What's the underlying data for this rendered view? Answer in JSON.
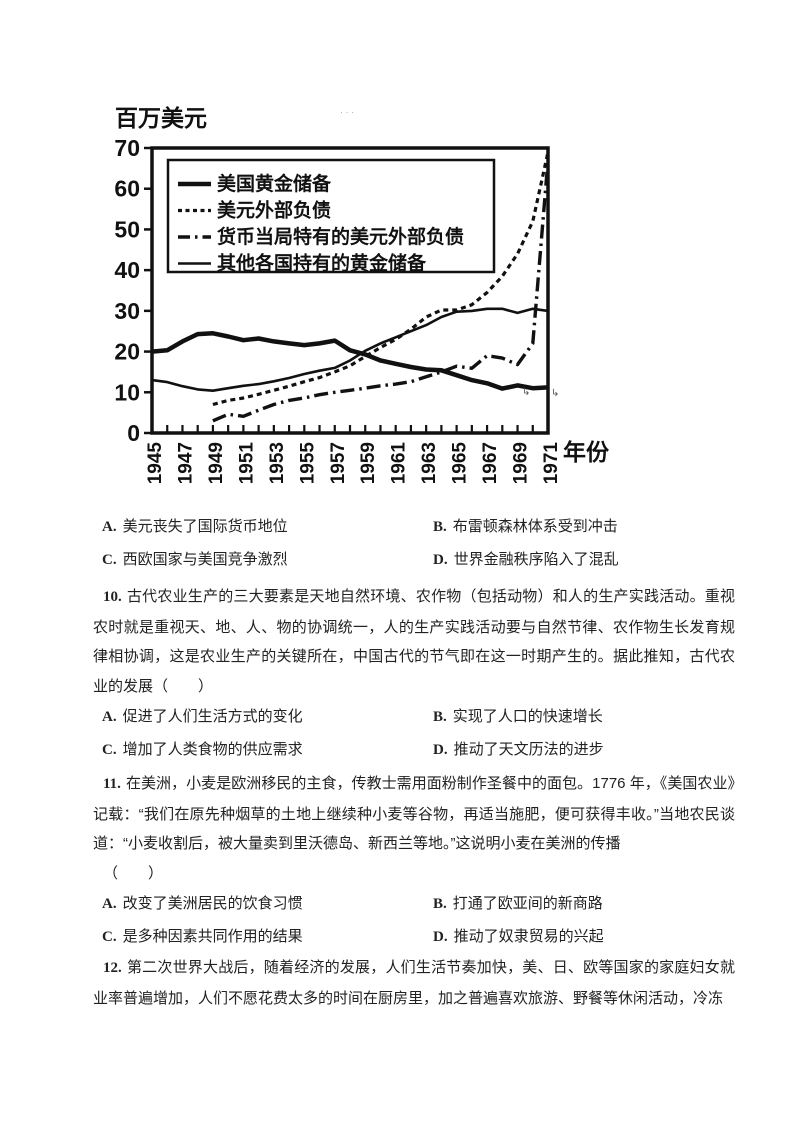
{
  "chart_data": {
    "type": "line",
    "title": "",
    "ylabel": "百万美元",
    "xlabel": "年份",
    "ylim": [
      0,
      70
    ],
    "yticks": [
      70,
      60,
      50,
      40,
      30,
      20,
      10,
      0
    ],
    "x_range": [
      1945,
      1971
    ],
    "xticks": [
      1945,
      1947,
      1949,
      1951,
      1953,
      1955,
      1957,
      1959,
      1961,
      1963,
      1965,
      1967,
      1969,
      1971
    ],
    "grid": false,
    "legend_position": "top-left",
    "series": [
      {
        "name": "美国黄金储备",
        "style": "solid-thick",
        "x": [
          1945,
          1946,
          1947,
          1948,
          1949,
          1950,
          1951,
          1952,
          1953,
          1954,
          1955,
          1956,
          1957,
          1958,
          1959,
          1960,
          1961,
          1962,
          1963,
          1964,
          1965,
          1966,
          1967,
          1968,
          1969,
          1970,
          1971
        ],
        "values": [
          20,
          20.3,
          22.5,
          24.3,
          24.5,
          23.7,
          22.8,
          23.2,
          22.5,
          22,
          21.6,
          22,
          22.7,
          20.3,
          19.3,
          17.8,
          17,
          16.2,
          15.6,
          15.4,
          14.2,
          13,
          12.2,
          10.9,
          11.7,
          11,
          11.2
        ]
      },
      {
        "name": "美元外部负债",
        "style": "dashed",
        "x": [
          1949,
          1950,
          1951,
          1952,
          1953,
          1954,
          1955,
          1956,
          1957,
          1958,
          1959,
          1960,
          1961,
          1962,
          1963,
          1964,
          1965,
          1966,
          1967,
          1968,
          1969,
          1970,
          1971
        ],
        "values": [
          7,
          8,
          8.6,
          9.5,
          10.5,
          11.5,
          12.6,
          13.6,
          15,
          16.5,
          18.8,
          21,
          23,
          25.5,
          28.5,
          30.2,
          30.2,
          31.5,
          34.5,
          38.5,
          44,
          52,
          69
        ]
      },
      {
        "name": "货币当局特有的美元外部负债",
        "style": "dash-dot",
        "x": [
          1949,
          1950,
          1951,
          1952,
          1953,
          1954,
          1955,
          1956,
          1957,
          1958,
          1959,
          1960,
          1961,
          1962,
          1963,
          1964,
          1965,
          1966,
          1967,
          1968,
          1969,
          1970,
          1971
        ],
        "values": [
          3,
          4.6,
          4.1,
          5.6,
          7,
          8,
          8.6,
          9.4,
          10,
          10.5,
          11,
          11.6,
          12,
          12.6,
          13.8,
          15,
          16.4,
          15.9,
          19,
          18.4,
          16.8,
          22,
          67
        ]
      },
      {
        "name": "其他各国持有的黄金储备",
        "style": "solid-thin",
        "x": [
          1945,
          1946,
          1947,
          1948,
          1949,
          1950,
          1951,
          1952,
          1953,
          1954,
          1955,
          1956,
          1957,
          1958,
          1959,
          1960,
          1961,
          1962,
          1963,
          1964,
          1965,
          1966,
          1967,
          1968,
          1969,
          1970,
          1971
        ],
        "values": [
          13,
          12.5,
          11.5,
          10.7,
          10.4,
          11,
          11.6,
          12,
          12.7,
          13.5,
          14.5,
          15.3,
          16,
          17.8,
          20.2,
          22,
          23.5,
          25,
          26.5,
          28.5,
          29.8,
          30,
          30.5,
          30.5,
          29.5,
          30.5,
          30
        ]
      }
    ]
  },
  "questions": {
    "q9": {
      "options": [
        {
          "label": "A.",
          "text": "美元丧失了国际货币地位"
        },
        {
          "label": "B.",
          "text": "布雷顿森林体系受到冲击"
        },
        {
          "label": "C.",
          "text": "西欧国家与美国竞争激烈"
        },
        {
          "label": "D.",
          "text": "世界金融秩序陷入了混乱"
        }
      ]
    },
    "q10": {
      "number": "10.",
      "text": "古代农业生产的三大要素是天地自然环境、农作物（包括动物）和人的生产实践活动。重视农时就是重视天、地、人、物的协调统一，人的生产实践活动要与自然节律、农作物生长发育规律相协调，这是农业生产的关键所在，中国古代的节气即在这一时期产生的。据此推知，古代农业的发展（　　）",
      "options": [
        {
          "label": "A.",
          "text": "促进了人们生活方式的变化"
        },
        {
          "label": "B.",
          "text": "实现了人口的快速增长"
        },
        {
          "label": "C.",
          "text": "增加了人类食物的供应需求"
        },
        {
          "label": "D.",
          "text": "推动了天文历法的进步"
        }
      ]
    },
    "q11": {
      "number": "11.",
      "text": "在美洲，小麦是欧洲移民的主食，传教士需用面粉制作圣餐中的面包。1776 年，《美国农业》记载：“我们在原先种烟草的土地上继续种小麦等谷物，再适当施肥，便可获得丰收。”当地农民谈道：“小麦收割后，被大量卖到里沃德岛、新西兰等地。”这说明小麦在美洲的传播",
      "paren": "（　　）",
      "options": [
        {
          "label": "A.",
          "text": "改变了美洲居民的饮食习惯"
        },
        {
          "label": "B.",
          "text": "打通了欧亚间的新商路"
        },
        {
          "label": "C.",
          "text": "是多种因素共同作用的结果"
        },
        {
          "label": "D.",
          "text": "推动了奴隶贸易的兴起"
        }
      ]
    },
    "q12": {
      "number": "12.",
      "text": "第二次世界大战后，随着经济的发展，人们生活节奏加快，美、日、欧等国家的家庭妇女就业率普遍增加，人们不愿花费太多的时间在厨房里，加之普遍喜欢旅游、野餐等休闲活动，冷冻"
    }
  }
}
